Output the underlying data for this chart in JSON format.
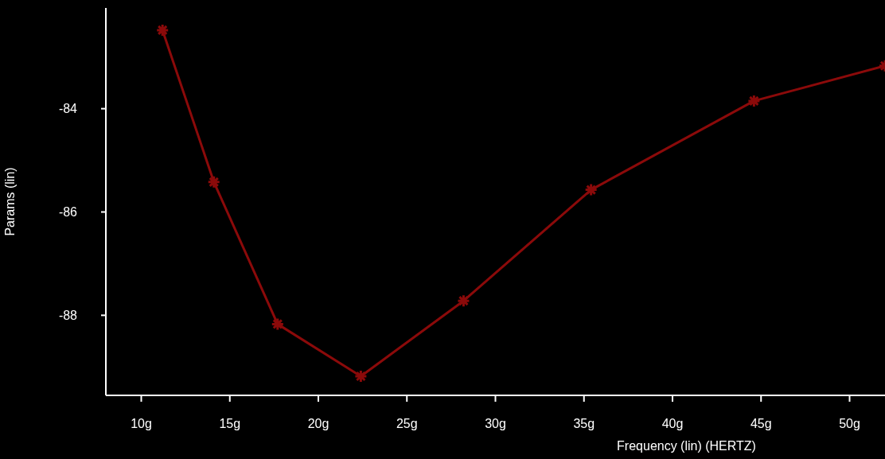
{
  "chart_data": {
    "type": "line",
    "xlabel": "Frequency (lin) (HERTZ)",
    "ylabel": "Params (lin)",
    "x": [
      11.2,
      14.1,
      17.7,
      22.4,
      28.2,
      35.4,
      44.6,
      52
    ],
    "series": [
      {
        "color": "#8b0a0a",
        "values": [
          -82.48,
          -85.42,
          -88.17,
          -89.18,
          -87.72,
          -85.57,
          -83.85,
          -83.17
        ]
      }
    ],
    "xlim": [
      8,
      52
    ],
    "xticks": [
      {
        "value": 10,
        "label": "10g"
      },
      {
        "value": 15,
        "label": "15g"
      },
      {
        "value": 20,
        "label": "20g"
      },
      {
        "value": 25,
        "label": "25g"
      },
      {
        "value": 30,
        "label": "30g"
      },
      {
        "value": 35,
        "label": "35g"
      },
      {
        "value": 40,
        "label": "40g"
      },
      {
        "value": 45,
        "label": "45g"
      },
      {
        "value": 50,
        "label": "50g"
      }
    ],
    "ylim": [
      -89.55,
      -82.05
    ],
    "yticks": [
      -84,
      -86,
      -88
    ],
    "marker": "cross"
  }
}
